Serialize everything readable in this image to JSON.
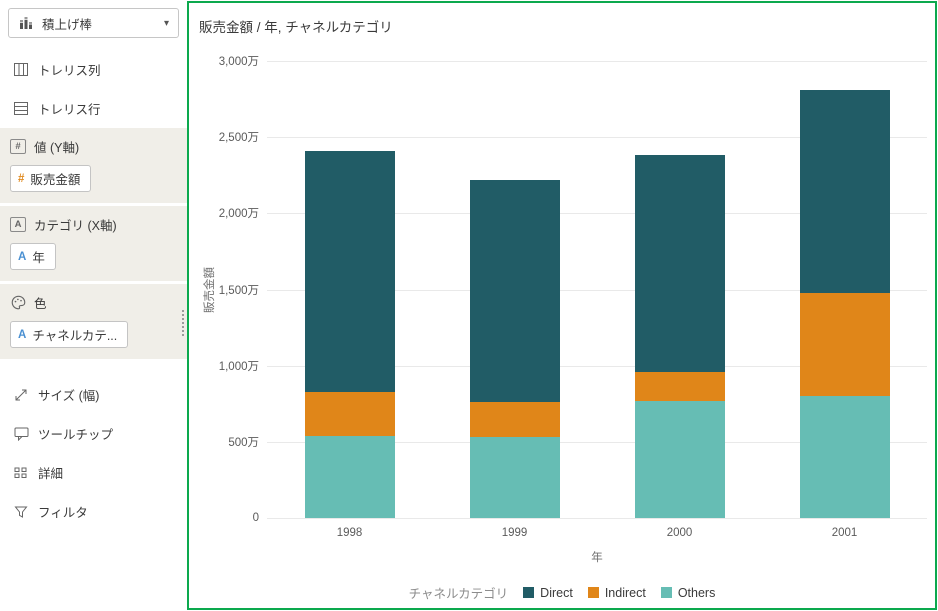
{
  "icons": {
    "caret_down": "▾",
    "hash": "#",
    "letter_a": "A"
  },
  "sidebar": {
    "chart_type": {
      "label": "積上げ棒"
    },
    "items_top": [
      {
        "label": "トレリス列"
      },
      {
        "label": "トレリス行"
      }
    ],
    "sections": [
      {
        "header": "値 (Y軸)",
        "chip": "販売金額"
      },
      {
        "header": "カテゴリ (X軸)",
        "chip": "年"
      },
      {
        "header": "色",
        "chip": "チャネルカテ..."
      }
    ],
    "items_bottom": [
      {
        "label": "サイズ (幅)"
      },
      {
        "label": "ツールチップ"
      },
      {
        "label": "詳細"
      },
      {
        "label": "フィルタ"
      }
    ]
  },
  "chart": {
    "title": "販売金額 / 年, チャネルカテゴリ",
    "y_axis_title": "販売金額",
    "x_axis_title": "年",
    "legend_title": "チャネルカテゴリ"
  },
  "chart_data": {
    "type": "bar",
    "stacked": true,
    "title": "販売金額 / 年, チャネルカテゴリ",
    "xlabel": "年",
    "ylabel": "販売金額",
    "unit": "万",
    "ylim": [
      0,
      3000
    ],
    "ytick_values": [
      0,
      500,
      1000,
      1500,
      2000,
      2500,
      3000
    ],
    "ytick_labels": [
      "0",
      "500万",
      "1,000万",
      "1,500万",
      "2,000万",
      "2,500万",
      "3,000万"
    ],
    "categories": [
      "1998",
      "1999",
      "2000",
      "2001"
    ],
    "series": [
      {
        "name": "Others",
        "color": "#66BDB4",
        "values": [
          540,
          530,
          770,
          800
        ]
      },
      {
        "name": "Indirect",
        "color": "#E08619",
        "values": [
          290,
          230,
          190,
          680
        ]
      },
      {
        "name": "Direct",
        "color": "#215C66",
        "values": [
          1580,
          1460,
          1420,
          1330
        ]
      }
    ],
    "totals": [
      2410,
      2220,
      2380,
      2810
    ],
    "legend_title": "チャネルカテゴリ",
    "legend_order": [
      "Direct",
      "Indirect",
      "Others"
    ],
    "grid": "horizontal",
    "legend_position": "bottom"
  },
  "colors": {
    "panel_border": "#0CA94E",
    "section_bg": "#F0EEE8",
    "gridline": "#E9E9E9"
  }
}
